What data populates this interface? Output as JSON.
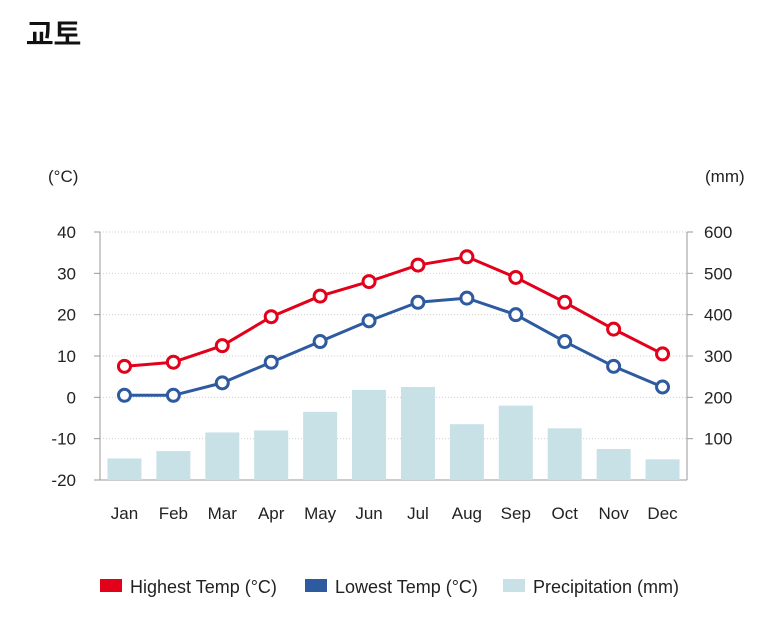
{
  "title": "교토",
  "chart_data": {
    "type": "line",
    "categories": [
      "Jan",
      "Feb",
      "Mar",
      "Apr",
      "May",
      "Jun",
      "Jul",
      "Aug",
      "Sep",
      "Oct",
      "Nov",
      "Dec"
    ],
    "series": [
      {
        "name": "Highest Temp (°C)",
        "type": "line",
        "axis": "left",
        "color": "#e2001a",
        "values": [
          7.5,
          8.5,
          12.5,
          19.5,
          24.5,
          28,
          32,
          34,
          29,
          23,
          16.5,
          10.5
        ]
      },
      {
        "name": "Lowest Temp (°C)",
        "type": "line",
        "axis": "left",
        "color": "#2e5aa0",
        "values": [
          0.5,
          0.5,
          3.5,
          8.5,
          13.5,
          18.5,
          23,
          24,
          20,
          13.5,
          7.5,
          2.5
        ]
      },
      {
        "name": "Precipitation (mm)",
        "type": "bar",
        "axis": "right",
        "color": "#c7e1e6",
        "values": [
          52,
          70,
          115,
          120,
          165,
          218,
          225,
          135,
          180,
          125,
          75,
          50
        ]
      }
    ],
    "y_left": {
      "unit": "(°C)",
      "min": -20,
      "max": 40,
      "ticks": [
        40,
        30,
        20,
        10,
        0,
        -10,
        -20
      ]
    },
    "y_right": {
      "unit": "(mm)",
      "min": 0,
      "max": 600,
      "ticks": [
        600,
        500,
        400,
        300,
        200,
        100
      ]
    },
    "grid": true,
    "legend_position": "bottom-center"
  }
}
